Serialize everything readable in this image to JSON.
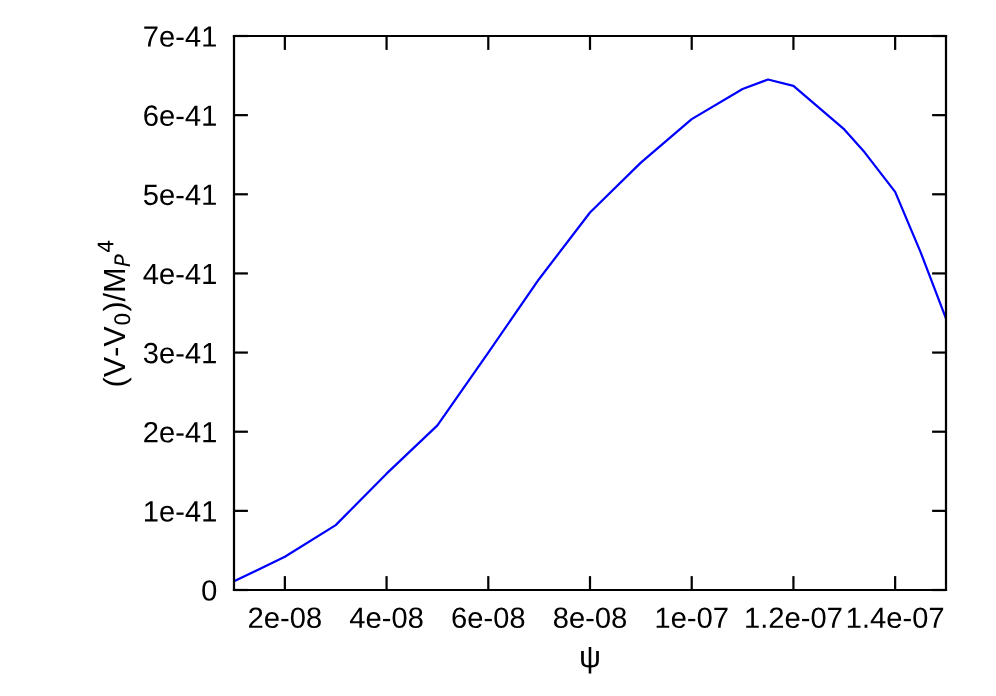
{
  "chart_data": {
    "type": "line",
    "xlabel": "ψ",
    "ylabel": "(V-V$_{0}$)/M$_{P}$$^{4}$",
    "x": [
      1e-08,
      2e-08,
      3e-08,
      4e-08,
      5e-08,
      6e-08,
      7e-08,
      8e-08,
      9e-08,
      1e-07,
      1.1e-07,
      1.15e-07,
      1.2e-07,
      1.3e-07,
      1.34e-07,
      1.4e-07,
      1.45e-07,
      1.5e-07
    ],
    "series": [
      {
        "color": "#0000ff",
        "values": [
          1.1e-42,
          4.2e-42,
          8.2e-42,
          1.47e-41,
          2.08e-41,
          3e-41,
          3.93e-41,
          4.77e-41,
          5.4e-41,
          5.95e-41,
          6.33e-41,
          6.45e-41,
          6.37e-41,
          5.82e-41,
          5.53e-41,
          5.03e-41,
          4.27e-41,
          3.43e-41
        ]
      }
    ],
    "xlim": [
      1e-08,
      1.5e-07
    ],
    "ylim": [
      0,
      7e-41
    ],
    "xticks": [
      {
        "value": 2e-08,
        "label": "2e-08"
      },
      {
        "value": 4e-08,
        "label": "4e-08"
      },
      {
        "value": 6e-08,
        "label": "6e-08"
      },
      {
        "value": 8e-08,
        "label": "8e-08"
      },
      {
        "value": 1e-07,
        "label": "1e-07"
      },
      {
        "value": 1.2e-07,
        "label": "1.2e-07"
      },
      {
        "value": 1.4e-07,
        "label": "1.4e-07"
      }
    ],
    "yticks": [
      0,
      {
        "value": 1e-41,
        "label": "1e-41"
      },
      {
        "value": 2e-41,
        "label": "2e-41"
      },
      {
        "value": 3e-41,
        "label": "3e-41"
      },
      {
        "value": 4e-41,
        "label": "4e-41"
      },
      {
        "value": 5e-41,
        "label": "5e-41"
      },
      {
        "value": 6e-41,
        "label": "6e-41"
      },
      {
        "value": 7e-41,
        "label": "7e-41"
      }
    ],
    "marker": "none",
    "line_style": "solid"
  }
}
